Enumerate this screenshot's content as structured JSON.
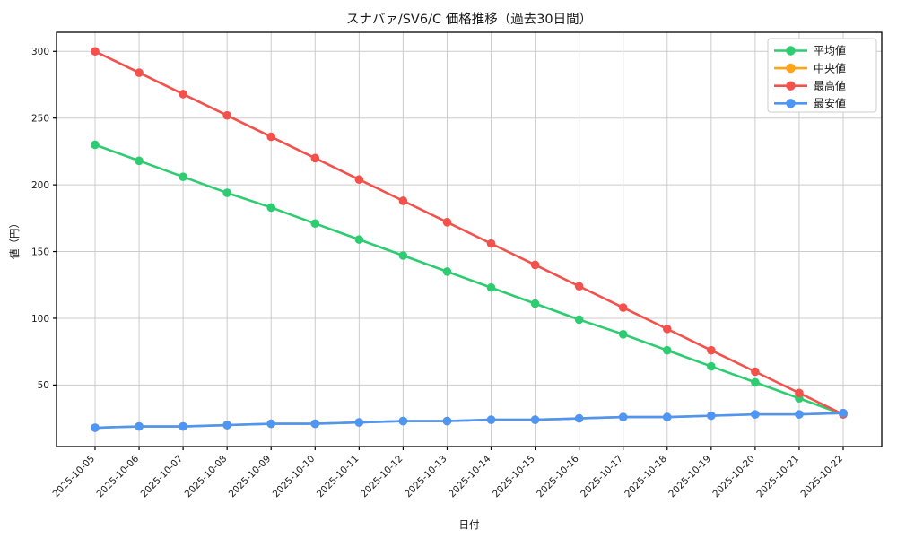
{
  "title": "スナバァ/SV6/C 価格推移（過去30日間）",
  "chart_data": {
    "type": "line",
    "title": "スナバァ/SV6/C 価格推移（過去30日間）",
    "xlabel": "日付",
    "ylabel": "値（円）",
    "x": [
      "2025-10-05",
      "2025-10-06",
      "2025-10-07",
      "2025-10-08",
      "2025-10-09",
      "2025-10-10",
      "2025-10-11",
      "2025-10-12",
      "2025-10-13",
      "2025-10-14",
      "2025-10-15",
      "2025-10-16",
      "2025-10-17",
      "2025-10-18",
      "2025-10-19",
      "2025-10-20",
      "2025-10-21",
      "2025-10-22"
    ],
    "series": [
      {
        "name": "平均値",
        "color": "#2ecc71",
        "values": [
          230,
          218,
          206,
          194,
          183,
          171,
          159,
          147,
          135,
          123,
          111,
          99,
          88,
          76,
          64,
          52,
          40,
          28
        ]
      },
      {
        "name": "中央値",
        "color": "#ffa417",
        "values": [
          18,
          19,
          19,
          20,
          21,
          21,
          22,
          23,
          23,
          24,
          24,
          25,
          26,
          26,
          27,
          28,
          28,
          29
        ]
      },
      {
        "name": "最高値",
        "color": "#f4514c",
        "values": [
          300,
          284,
          268,
          252,
          236,
          220,
          204,
          188,
          172,
          156,
          140,
          124,
          108,
          92,
          76,
          60,
          44,
          28
        ]
      },
      {
        "name": "最安値",
        "color": "#4d96f5",
        "values": [
          18,
          19,
          19,
          20,
          21,
          21,
          22,
          23,
          23,
          24,
          24,
          25,
          26,
          26,
          27,
          28,
          28,
          29
        ]
      }
    ],
    "yticks": [
      50,
      100,
      150,
      200,
      250,
      300
    ],
    "ylim": [
      3.9,
      314.3
    ],
    "grid": true,
    "legend_position": "upper right",
    "grid_color": "#cccccc",
    "axis_color": "#000000",
    "background": "#ffffff"
  }
}
